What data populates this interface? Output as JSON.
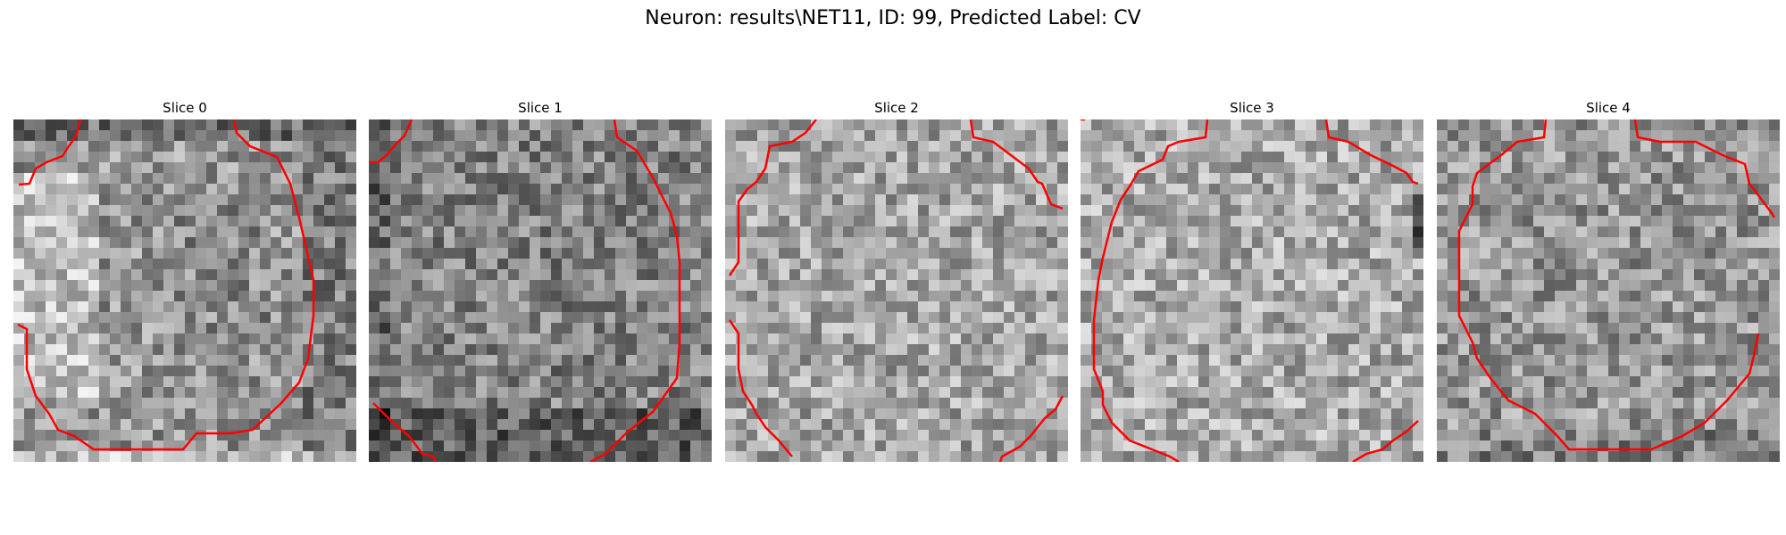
{
  "figure": {
    "title": "Neuron: results\\NET11, ID: 99, Predicted Label: CV"
  },
  "panels": [
    {
      "title": "Slice 0"
    },
    {
      "title": "Slice 1"
    },
    {
      "title": "Slice 2"
    },
    {
      "title": "Slice 3"
    },
    {
      "title": "Slice 4"
    }
  ],
  "colors": {
    "contour": "#ff0000",
    "background": "#ffffff"
  }
}
